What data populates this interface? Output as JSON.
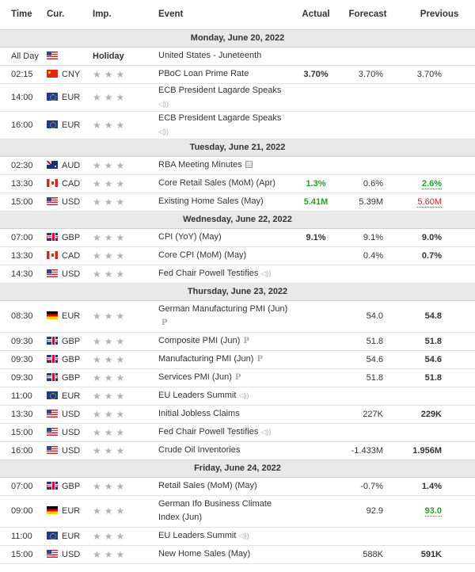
{
  "header": {
    "time": "Time",
    "currency": "Cur.",
    "importance": "Imp.",
    "event": "Event",
    "actual": "Actual",
    "forecast": "Forecast",
    "previous": "Previous"
  },
  "colors": {
    "actual_better": "#2c9a2c",
    "previous_revised_up": "#2c9a2c",
    "previous_revised_down": "#d91e1e",
    "day_header_bg": "#e8e8e8",
    "importance_star": "#b3b3b3"
  },
  "days": [
    {
      "date": "Monday, June 20, 2022",
      "events": [
        {
          "time": "All Day",
          "flag": "us",
          "currency": "",
          "importance_label": "Holiday",
          "event": "United States - Juneteenth",
          "actual": "",
          "forecast": "",
          "previous": ""
        },
        {
          "time": "02:15",
          "flag": "cn",
          "currency": "CNY",
          "importance": 3,
          "event": "PBoC Loan Prime Rate",
          "actual": "3.70%",
          "forecast": "3.70%",
          "previous": "3.70%"
        },
        {
          "time": "14:00",
          "flag": "eu",
          "currency": "EUR",
          "importance": 3,
          "event": "ECB President Lagarde Speaks",
          "icon": "speaker-icon",
          "actual": "",
          "forecast": "",
          "previous": ""
        },
        {
          "time": "16:00",
          "flag": "eu",
          "currency": "EUR",
          "importance": 3,
          "event": "ECB President Lagarde Speaks",
          "icon": "speaker-icon",
          "actual": "",
          "forecast": "",
          "previous": ""
        }
      ]
    },
    {
      "date": "Tuesday, June 21, 2022",
      "events": [
        {
          "time": "02:30",
          "flag": "au",
          "currency": "AUD",
          "importance": 3,
          "event": "RBA Meeting Minutes",
          "icon": "report-icon",
          "actual": "",
          "forecast": "",
          "previous": ""
        },
        {
          "time": "13:30",
          "flag": "ca",
          "currency": "CAD",
          "importance": 3,
          "event": "Core Retail Sales (MoM) (Apr)",
          "actual": "1.3%",
          "actual_status": "better",
          "forecast": "0.6%",
          "previous": "2.6%",
          "previous_status": "revised-up"
        },
        {
          "time": "15:00",
          "flag": "us",
          "currency": "USD",
          "importance": 3,
          "event": "Existing Home Sales (May)",
          "actual": "5.41M",
          "actual_status": "better",
          "forecast": "5.39M",
          "previous": "5.60M",
          "previous_status": "revised-down"
        }
      ]
    },
    {
      "date": "Wednesday, June 22, 2022",
      "events": [
        {
          "time": "07:00",
          "flag": "gb",
          "currency": "GBP",
          "importance": 3,
          "event": "CPI (YoY) (May)",
          "actual": "9.1%",
          "forecast": "9.1%",
          "previous": "9.0%"
        },
        {
          "time": "13:30",
          "flag": "ca",
          "currency": "CAD",
          "importance": 3,
          "event": "Core CPI (MoM) (May)",
          "actual": "",
          "forecast": "0.4%",
          "previous": "0.7%"
        },
        {
          "time": "14:30",
          "flag": "us",
          "currency": "USD",
          "importance": 3,
          "event": "Fed Chair Powell Testifies",
          "icon": "speaker-icon",
          "actual": "",
          "forecast": "",
          "previous": ""
        }
      ]
    },
    {
      "date": "Thursday, June 23, 2022",
      "events": [
        {
          "time": "08:30",
          "flag": "de",
          "currency": "EUR",
          "importance": 3,
          "event": "German Manufacturing PMI (Jun)",
          "icon": "preliminary-icon",
          "tall": true,
          "actual": "",
          "forecast": "54.0",
          "previous": "54.8"
        },
        {
          "time": "09:30",
          "flag": "gb",
          "currency": "GBP",
          "importance": 3,
          "event": "Composite PMI (Jun)",
          "icon": "preliminary-icon",
          "actual": "",
          "forecast": "51.8",
          "previous": "51.8"
        },
        {
          "time": "09:30",
          "flag": "gb",
          "currency": "GBP",
          "importance": 3,
          "event": "Manufacturing PMI (Jun)",
          "icon": "preliminary-icon",
          "actual": "",
          "forecast": "54.6",
          "previous": "54.6"
        },
        {
          "time": "09:30",
          "flag": "gb",
          "currency": "GBP",
          "importance": 3,
          "event": "Services PMI (Jun)",
          "icon": "preliminary-icon",
          "actual": "",
          "forecast": "51.8",
          "previous": "51.8"
        },
        {
          "time": "11:00",
          "flag": "eu",
          "currency": "EUR",
          "importance": 3,
          "event": "EU Leaders Summit",
          "icon": "speaker-icon",
          "actual": "",
          "forecast": "",
          "previous": ""
        },
        {
          "time": "13:30",
          "flag": "us",
          "currency": "USD",
          "importance": 3,
          "event": "Initial Jobless Claims",
          "actual": "",
          "forecast": "227K",
          "previous": "229K"
        },
        {
          "time": "15:00",
          "flag": "us",
          "currency": "USD",
          "importance": 3,
          "event": "Fed Chair Powell Testifies",
          "icon": "speaker-icon",
          "actual": "",
          "forecast": "",
          "previous": ""
        },
        {
          "time": "16:00",
          "flag": "us",
          "currency": "USD",
          "importance": 3,
          "event": "Crude Oil Inventories",
          "actual": "",
          "forecast": "-1.433M",
          "previous": "1.956M"
        }
      ]
    },
    {
      "date": "Friday, June 24, 2022",
      "events": [
        {
          "time": "07:00",
          "flag": "gb",
          "currency": "GBP",
          "importance": 3,
          "event": "Retail Sales (MoM) (May)",
          "actual": "",
          "forecast": "-0.7%",
          "previous": "1.4%"
        },
        {
          "time": "09:00",
          "flag": "de",
          "currency": "EUR",
          "importance": 3,
          "event": "German Ifo Business Climate Index (Jun)",
          "tall": true,
          "actual": "",
          "forecast": "92.9",
          "previous": "93.0",
          "previous_status": "revised-up"
        },
        {
          "time": "11:00",
          "flag": "eu",
          "currency": "EUR",
          "importance": 3,
          "event": "EU Leaders Summit",
          "icon": "speaker-icon",
          "actual": "",
          "forecast": "",
          "previous": ""
        },
        {
          "time": "15:00",
          "flag": "us",
          "currency": "USD",
          "importance": 3,
          "event": "New Home Sales (May)",
          "actual": "",
          "forecast": "588K",
          "previous": "591K"
        }
      ]
    }
  ]
}
